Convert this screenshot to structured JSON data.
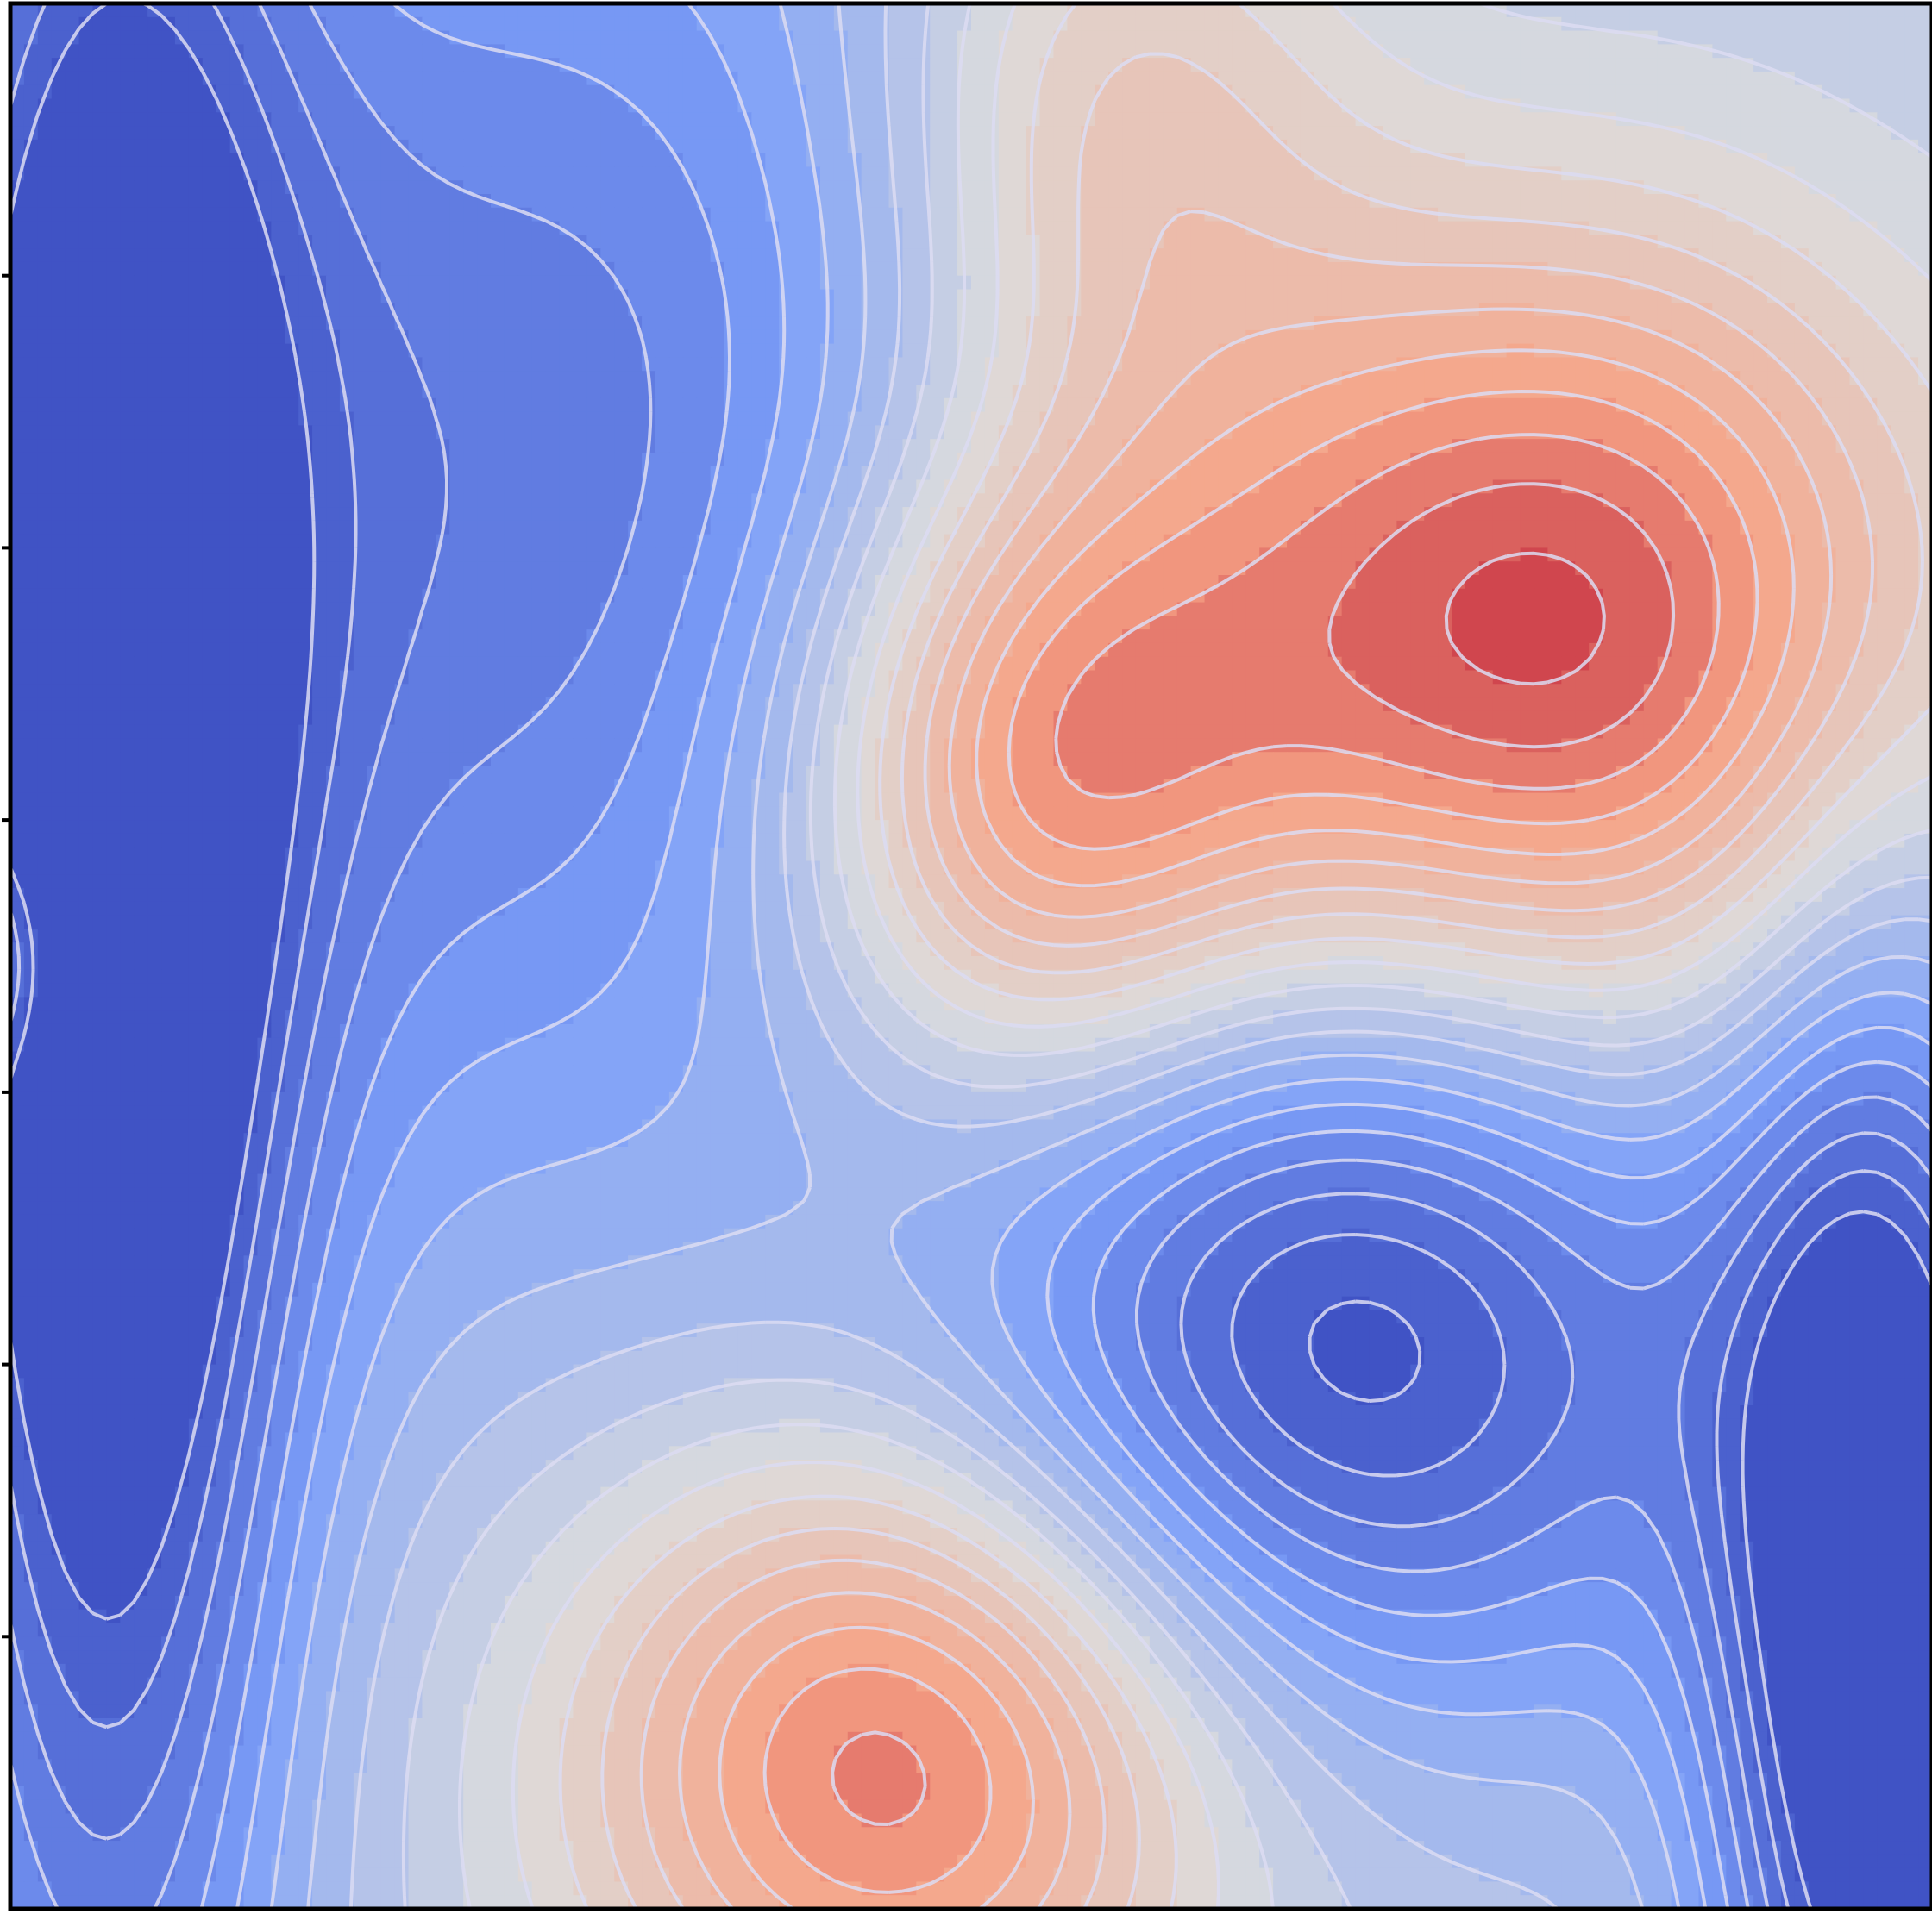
{
  "chart_data": {
    "type": "heatmap",
    "title": "",
    "xlabel": "",
    "ylabel": "",
    "colormap": "coolwarm",
    "value_range": [
      -1,
      1
    ],
    "contour_lines": {
      "count": 24,
      "color": "#dcdcf2"
    },
    "ytick_count": 6,
    "grid": false,
    "legend": "none",
    "features": [
      {
        "name": "cool-basin-upper-left",
        "value": -0.55
      },
      {
        "name": "cool-valley-left-edge",
        "value": -0.95
      },
      {
        "name": "warm-ridge-top-center",
        "value": 0.45
      },
      {
        "name": "hot-peak-upper-right",
        "value": 1.0
      },
      {
        "name": "warm-spot-center-left",
        "value": 0.75
      },
      {
        "name": "cool-vortex-lower-center",
        "value": -0.8
      },
      {
        "name": "warm-peak-bottom-center",
        "value": 0.85
      },
      {
        "name": "cool-trough-lower-right",
        "value": -1.0
      },
      {
        "name": "warm-sliver-left-edge",
        "value": 0.3
      }
    ]
  }
}
